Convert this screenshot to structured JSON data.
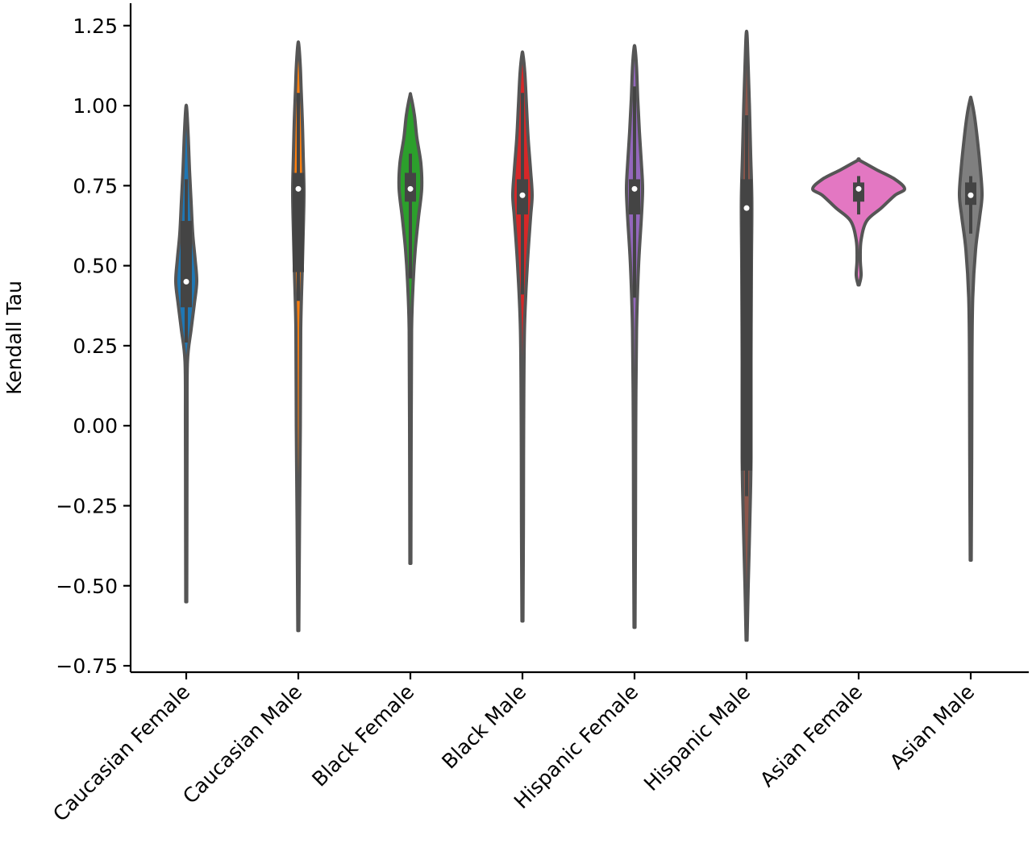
{
  "chart_data": {
    "type": "violin",
    "ylabel": "Kendall Tau",
    "xlabel": "",
    "ylim": [
      -0.77,
      1.32
    ],
    "yticks": [
      -0.75,
      -0.5,
      -0.25,
      0.0,
      0.25,
      0.5,
      0.75,
      1.0,
      1.25
    ],
    "ytick_labels": [
      "−0.75",
      "−0.50",
      "−0.25",
      "0.00",
      "0.25",
      "0.50",
      "0.75",
      "1.00",
      "1.25"
    ],
    "categories": [
      "Caucasian Female",
      "Caucasian Male",
      "Black Female",
      "Black Male",
      "Hispanic Female",
      "Hispanic Male",
      "Asian Female",
      "Asian Male"
    ],
    "grid": false,
    "series": [
      {
        "color": "#1f77b4",
        "min": -0.55,
        "max": 0.99,
        "q1": 0.37,
        "median": 0.45,
        "q3": 0.64,
        "whisker_low": 0.26,
        "whisker_high": 0.77,
        "density": [
          [
            -0.55,
            0.6
          ],
          [
            -0.3,
            0.8
          ],
          [
            0.0,
            1.0
          ],
          [
            0.2,
            1.5
          ],
          [
            0.3,
            6
          ],
          [
            0.38,
            10
          ],
          [
            0.45,
            13
          ],
          [
            0.52,
            11
          ],
          [
            0.6,
            8
          ],
          [
            0.7,
            6
          ],
          [
            0.8,
            4
          ],
          [
            0.9,
            2.5
          ],
          [
            0.99,
            0.6
          ]
        ]
      },
      {
        "color": "#ff7f0e",
        "min": -0.64,
        "max": 1.19,
        "q1": 0.48,
        "median": 0.74,
        "q3": 0.79,
        "whisker_low": 0.39,
        "whisker_high": 1.04,
        "density": [
          [
            -0.64,
            0.6
          ],
          [
            -0.3,
            1.5
          ],
          [
            0.0,
            2.5
          ],
          [
            0.3,
            3
          ],
          [
            0.5,
            5
          ],
          [
            0.65,
            6.5
          ],
          [
            0.74,
            7
          ],
          [
            0.85,
            6
          ],
          [
            0.95,
            5
          ],
          [
            1.05,
            3.5
          ],
          [
            1.12,
            2.5
          ],
          [
            1.19,
            0.6
          ]
        ]
      },
      {
        "color": "#2ca02c",
        "min": -0.43,
        "max": 1.03,
        "q1": 0.7,
        "median": 0.74,
        "q3": 0.79,
        "whisker_low": 0.46,
        "whisker_high": 0.85,
        "density": [
          [
            -0.43,
            0.6
          ],
          [
            0.0,
            1.0
          ],
          [
            0.3,
            1.5
          ],
          [
            0.45,
            3.5
          ],
          [
            0.55,
            6
          ],
          [
            0.65,
            10
          ],
          [
            0.74,
            14
          ],
          [
            0.82,
            13
          ],
          [
            0.9,
            8
          ],
          [
            0.97,
            5
          ],
          [
            1.03,
            0.6
          ]
        ]
      },
      {
        "color": "#d62728",
        "min": -0.61,
        "max": 1.16,
        "q1": 0.66,
        "median": 0.72,
        "q3": 0.77,
        "whisker_low": 0.41,
        "whisker_high": 1.04,
        "density": [
          [
            -0.61,
            0.6
          ],
          [
            -0.3,
            1.2
          ],
          [
            0.0,
            1.5
          ],
          [
            0.3,
            2.5
          ],
          [
            0.5,
            6
          ],
          [
            0.65,
            10
          ],
          [
            0.72,
            12
          ],
          [
            0.8,
            10
          ],
          [
            0.9,
            7
          ],
          [
            1.0,
            5
          ],
          [
            1.1,
            3
          ],
          [
            1.16,
            0.6
          ]
        ]
      },
      {
        "color": "#9467bd",
        "min": -0.63,
        "max": 1.18,
        "q1": 0.66,
        "median": 0.74,
        "q3": 0.77,
        "whisker_low": 0.4,
        "whisker_high": 1.06,
        "density": [
          [
            -0.63,
            0.6
          ],
          [
            -0.3,
            1.2
          ],
          [
            0.0,
            1.5
          ],
          [
            0.3,
            2.5
          ],
          [
            0.5,
            5
          ],
          [
            0.65,
            8.5
          ],
          [
            0.74,
            10
          ],
          [
            0.82,
            8.5
          ],
          [
            0.92,
            6
          ],
          [
            1.02,
            4
          ],
          [
            1.12,
            2.5
          ],
          [
            1.18,
            0.6
          ]
        ]
      },
      {
        "color": "#8c564b",
        "min": -0.67,
        "max": 1.22,
        "q1": -0.14,
        "median": 0.68,
        "q3": 0.77,
        "whisker_low": -0.22,
        "whisker_high": 0.97,
        "density": [
          [
            -0.67,
            0.6
          ],
          [
            -0.5,
            2
          ],
          [
            -0.3,
            4
          ],
          [
            -0.1,
            5.5
          ],
          [
            0.2,
            5.5
          ],
          [
            0.5,
            6
          ],
          [
            0.7,
            6.5
          ],
          [
            0.85,
            5
          ],
          [
            1.0,
            3.5
          ],
          [
            1.12,
            2
          ],
          [
            1.22,
            0.6
          ]
        ]
      },
      {
        "color": "#e377c2",
        "min": 0.44,
        "max": 0.83,
        "q1": 0.7,
        "median": 0.74,
        "q3": 0.76,
        "whisker_low": 0.66,
        "whisker_high": 0.78,
        "density": [
          [
            0.44,
            0.6
          ],
          [
            0.47,
            3
          ],
          [
            0.52,
            2
          ],
          [
            0.58,
            3
          ],
          [
            0.64,
            10
          ],
          [
            0.68,
            28
          ],
          [
            0.72,
            45
          ],
          [
            0.74,
            57
          ],
          [
            0.77,
            45
          ],
          [
            0.8,
            22
          ],
          [
            0.83,
            0.6
          ]
        ]
      },
      {
        "color": "#7f7f7f",
        "min": -0.42,
        "max": 1.02,
        "q1": 0.69,
        "median": 0.72,
        "q3": 0.76,
        "whisker_low": 0.6,
        "whisker_high": 0.78,
        "density": [
          [
            -0.42,
            0.6
          ],
          [
            -0.1,
            1.2
          ],
          [
            0.2,
            1.5
          ],
          [
            0.4,
            2.5
          ],
          [
            0.55,
            6
          ],
          [
            0.65,
            11
          ],
          [
            0.72,
            14
          ],
          [
            0.8,
            12
          ],
          [
            0.9,
            8
          ],
          [
            0.97,
            4.5
          ],
          [
            1.02,
            0.6
          ]
        ]
      }
    ]
  }
}
